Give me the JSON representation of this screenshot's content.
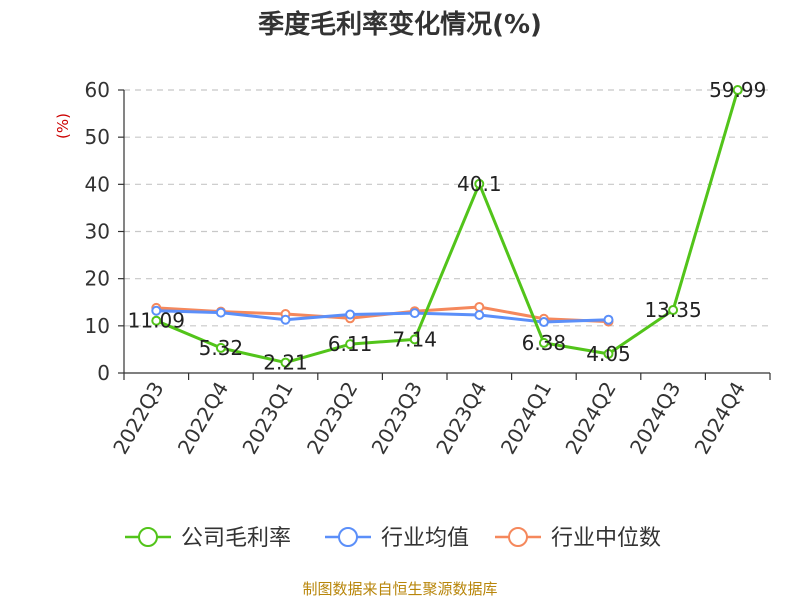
{
  "chart_data": {
    "type": "line",
    "title": "季度毛利率变化情况(%)",
    "ylabel": "(%)",
    "xlabel": "",
    "ylim": [
      0,
      60
    ],
    "yticks": [
      0,
      10,
      20,
      30,
      40,
      50,
      60
    ],
    "grid": true,
    "legend_position": "bottom",
    "categories": [
      "2022Q3",
      "2022Q4",
      "2023Q1",
      "2023Q2",
      "2023Q3",
      "2023Q4",
      "2024Q1",
      "2024Q2",
      "2024Q3",
      "2024Q4"
    ],
    "series": [
      {
        "name": "公司毛利率",
        "color": "#52c41a",
        "values": [
          11.09,
          5.32,
          2.21,
          6.11,
          7.14,
          40.1,
          6.38,
          4.05,
          13.35,
          59.99
        ],
        "labels": [
          "11.09",
          "5.32",
          "2.21",
          "6.11",
          "7.14",
          "40.1",
          "6.38",
          "4.05",
          "13.35",
          "59.99"
        ]
      },
      {
        "name": "行业均值",
        "color": "#5b8ff9",
        "values": [
          13.2,
          12.8,
          11.3,
          12.4,
          12.7,
          12.3,
          10.8,
          11.3,
          null,
          null
        ]
      },
      {
        "name": "行业中位数",
        "color": "#f5885c",
        "values": [
          13.8,
          13.0,
          12.5,
          11.6,
          13.1,
          14.0,
          11.5,
          10.9,
          null,
          null
        ]
      }
    ]
  },
  "source_text": "制图数据来自恒生聚源数据库"
}
